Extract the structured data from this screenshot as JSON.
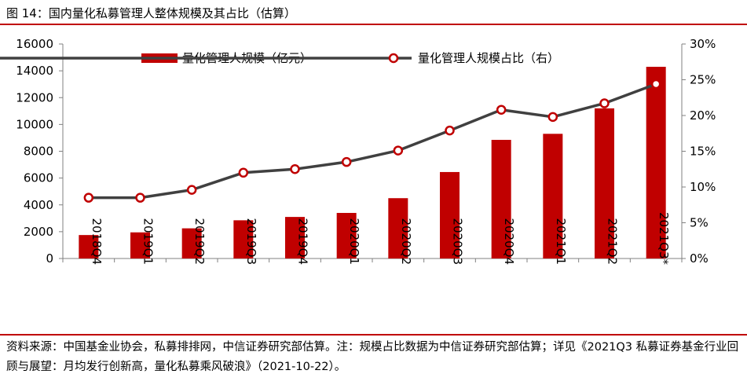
{
  "figure_title": "图 14：国内量化私募管理人整体规模及其占比（估算）",
  "source_note": "资料来源：中国基金业协会，私募排排网，中信证券研究部估算。注：规模占比数据为中信证券研究部估算；详见《2021Q3 私募证券基金行业回顾与展望：月均发行创新高，量化私募乘风破浪》（2021-10-22）。",
  "colors": {
    "bar": "#c00000",
    "line": "#404040",
    "marker_edge": "#c00000",
    "marker_fill": "#ffffff",
    "rule": "#c00000"
  },
  "chart_data": {
    "type": "bar",
    "title": "",
    "xlabel": "",
    "ylabel": "",
    "categories": [
      "2018Q4",
      "2019Q1",
      "2019Q2",
      "2019Q3",
      "2019Q4",
      "2020Q1",
      "2020Q2",
      "2020Q3",
      "2020Q4",
      "2021Q1",
      "2021Q2",
      "2021Q3*"
    ],
    "ylim": [
      0,
      16000
    ],
    "y_ticks": [
      "0",
      "2000",
      "4000",
      "6000",
      "8000",
      "10000",
      "12000",
      "14000",
      "16000"
    ],
    "y2lim": [
      0,
      30
    ],
    "y2_ticks": [
      "0%",
      "5%",
      "10%",
      "15%",
      "20%",
      "25%",
      "30%"
    ],
    "series": [
      {
        "name": "量化管理人规模（亿元）",
        "type": "bar",
        "axis": "left",
        "values": [
          1750,
          1950,
          2250,
          2850,
          3100,
          3400,
          4500,
          6450,
          8850,
          9300,
          11200,
          14300
        ]
      },
      {
        "name": "量化管理人规模占比（右）",
        "type": "line",
        "axis": "right",
        "marker": "circle",
        "values": [
          8.5,
          8.5,
          9.6,
          12.0,
          12.5,
          13.5,
          15.1,
          17.9,
          20.8,
          19.8,
          21.7,
          24.4
        ]
      }
    ],
    "legend_position": "top",
    "grid": false
  }
}
